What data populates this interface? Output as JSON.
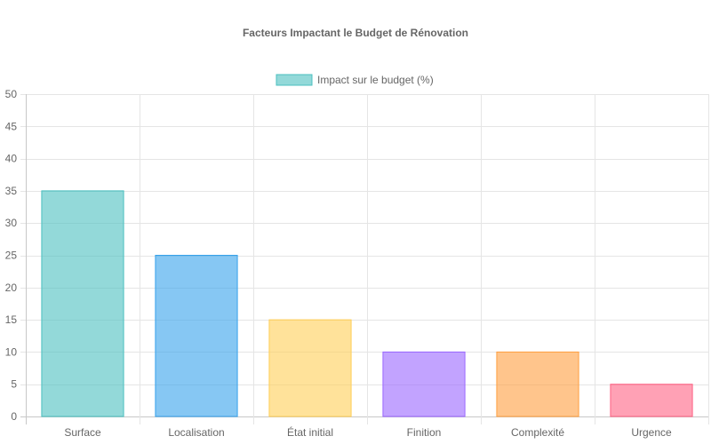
{
  "chart_data": {
    "type": "bar",
    "title": "Facteurs Impactant le Budget de Rénovation",
    "categories": [
      "Surface",
      "Localisation",
      "État initial",
      "Finition",
      "Complexité",
      "Urgence"
    ],
    "series": [
      {
        "name": "Impact sur le budget (%)",
        "values": [
          35,
          25,
          15,
          10,
          10,
          5
        ]
      }
    ],
    "bar_colors": [
      "#4BC0C0",
      "#36A2EB",
      "#FFCE56",
      "#9966FF",
      "#FF9F40",
      "#FF6384"
    ],
    "ylim": [
      0,
      50
    ],
    "yticks": [
      0,
      5,
      10,
      15,
      20,
      25,
      30,
      35,
      40,
      45,
      50
    ],
    "grid": true,
    "legend": "top-center",
    "xlabel": "",
    "ylabel": ""
  }
}
